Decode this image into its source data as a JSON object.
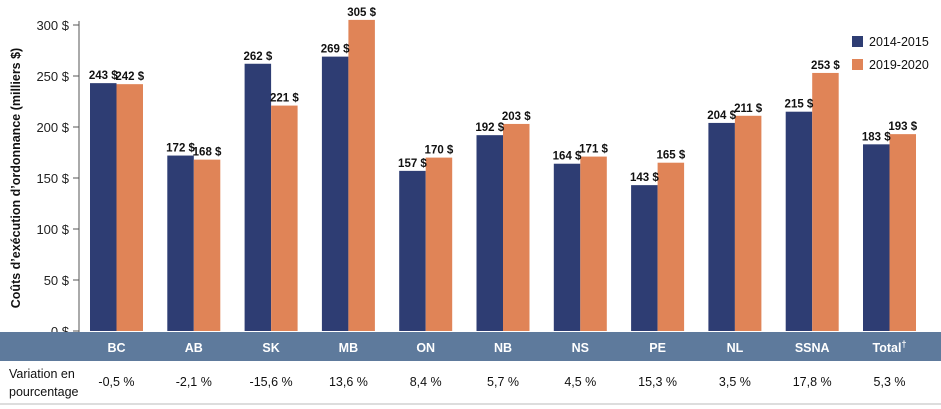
{
  "chart_data": {
    "type": "bar",
    "ylabel": "Coûts d’exécution d’ordonnance (milliers $)",
    "ylim": [
      0,
      300
    ],
    "yticks": [
      "0 $",
      "50 $",
      "100 $",
      "150 $",
      "200 $",
      "250 $",
      "300 $"
    ],
    "ytick_values": [
      0,
      50,
      100,
      150,
      200,
      250,
      300
    ],
    "categories": [
      "BC",
      "AB",
      "SK",
      "MB",
      "ON",
      "NB",
      "NS",
      "PE",
      "NL",
      "SSNA",
      "Total"
    ],
    "total_superscript": "†",
    "series": [
      {
        "name": "2014-2015",
        "color": "#2e3d73",
        "values": [
          243,
          172,
          262,
          269,
          157,
          192,
          164,
          143,
          204,
          215,
          183
        ],
        "labels": [
          "243 $",
          "172 $",
          "262 $",
          "269 $",
          "157 $",
          "192 $",
          "164 $",
          "143 $",
          "204 $",
          "215 $",
          "183 $"
        ]
      },
      {
        "name": "2019-2020",
        "color": "#e08457",
        "values": [
          242,
          168,
          221,
          305,
          170,
          203,
          171,
          165,
          211,
          253,
          193
        ],
        "labels": [
          "242 $",
          "168 $",
          "221 $",
          "305 $",
          "170 $",
          "203 $",
          "171 $",
          "165 $",
          "211 $",
          "253 $",
          "193 $"
        ]
      }
    ],
    "legend": {
      "placement": "top-right",
      "entries": [
        "2014-2015",
        "2019-2020"
      ]
    },
    "variation": {
      "label_line1": "Variation en",
      "label_line2": "pourcentage",
      "values": [
        "-0,5 %",
        "-2,1 %",
        "-15,6 %",
        "13,6 %",
        "8,4 %",
        "5,7 %",
        "4,5 %",
        "15,3 %",
        "3,5 %",
        "17,8 %",
        "5,3 %"
      ]
    },
    "category_band_color": "#5e7a9c"
  }
}
